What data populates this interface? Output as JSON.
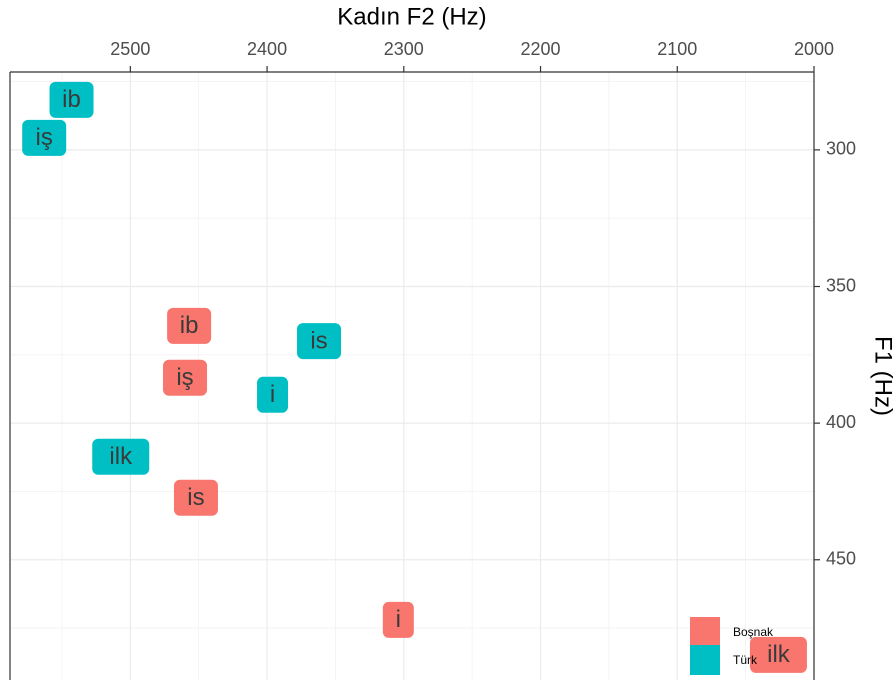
{
  "chart_data": {
    "type": "scatter",
    "title": "Kadın  F2 (Hz)",
    "y_label": "F1 (Hz)",
    "xlim": [
      2588,
      2000
    ],
    "xticks": [
      2500,
      2400,
      2300,
      2200,
      2100,
      2000
    ],
    "x_minor_grid": [
      2550,
      2450,
      2350,
      2250,
      2150,
      2050
    ],
    "ylim": [
      271.5,
      494
    ],
    "yticks": [
      300,
      350,
      400,
      450
    ],
    "y_minor_grid": [
      275,
      325,
      375,
      425,
      475
    ],
    "grid": true,
    "legend": "bottom-right",
    "series": [
      {
        "name": "Boşnak",
        "color": "#F8766D",
        "labels": [
          "ib",
          "iş",
          "is",
          "i",
          "ilk"
        ],
        "x": [
          2457,
          2460,
          2452,
          2304,
          2026
        ],
        "y": [
          364.4,
          383.4,
          427.3,
          472,
          484.8
        ]
      },
      {
        "name": "Türk",
        "color": "#00BFC4",
        "labels": [
          "ib",
          "iş",
          "is",
          "i",
          "ilk"
        ],
        "x": [
          2543,
          2563,
          2362,
          2396,
          2507
        ],
        "y": [
          281.7,
          295.6,
          370,
          389.6,
          412.3
        ]
      }
    ]
  }
}
